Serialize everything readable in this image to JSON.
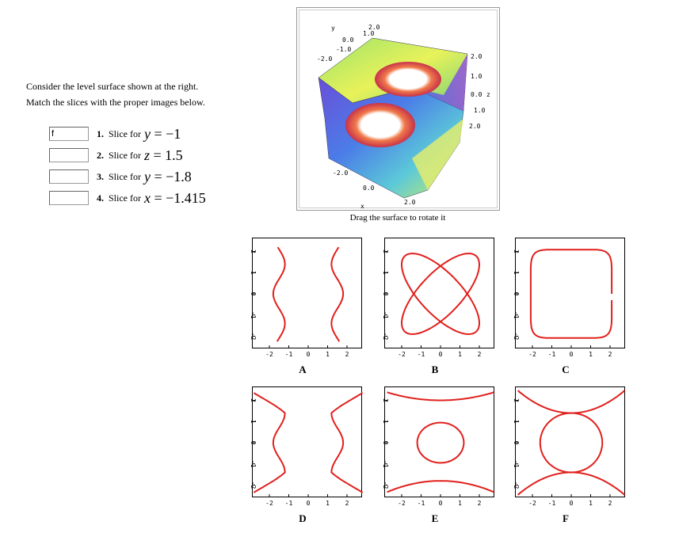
{
  "instructions": [
    "Consider the level surface shown at the right.",
    "Match the slices with the proper images below."
  ],
  "questions": [
    {
      "number": "1.",
      "prefix": "Slice for",
      "variable": "y",
      "value": "= −1",
      "answer": "f"
    },
    {
      "number": "2.",
      "prefix": "Slice for",
      "variable": "z",
      "value": "= 1.5"
    },
    {
      "number": "3.",
      "prefix": "Slice for",
      "variable": "y",
      "value": "= −1.8"
    },
    {
      "number": "4.",
      "prefix": "Slice for",
      "variable": "x",
      "value": "= −1.415"
    }
  ],
  "surface": {
    "caption": "Drag the surface to rotate it",
    "labels": [
      "y",
      "2.0",
      "1.0",
      "0.0",
      "-1.0",
      "-2.0",
      "2.0",
      "1.0",
      "0.0",
      "z",
      "1.0",
      "2.0",
      "-2.0",
      "0.0",
      "x",
      "2.0"
    ]
  },
  "plots": {
    "x_ticks": [
      -2,
      -1,
      0,
      1,
      2
    ],
    "y_ticks": [
      2,
      1,
      0,
      -1,
      -2
    ],
    "panels": [
      "A",
      "B",
      "C",
      "D",
      "E",
      "F"
    ]
  }
}
